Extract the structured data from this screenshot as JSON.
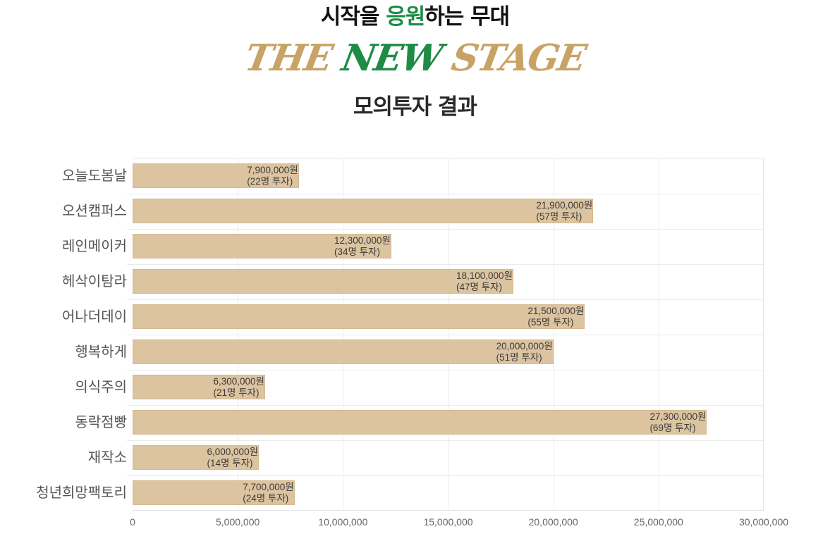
{
  "header": {
    "title_part1": "시작을 ",
    "title_accent": "응원",
    "title_part2": "하는 무대",
    "brand_part1": "THE ",
    "brand_part2": "NEW",
    "brand_part3": " STAGE",
    "subtitle": "모의투자 결과"
  },
  "colors": {
    "bar": "#dcc4a0",
    "accent_green": "#1e8c45",
    "brand_gold": "#c8a366"
  },
  "chart_data": {
    "type": "bar",
    "orientation": "horizontal",
    "title": "모의투자 결과",
    "xlabel": "",
    "ylabel": "",
    "xlim": [
      0,
      30000000
    ],
    "grid": true,
    "x_ticks": [
      "0",
      "5,000,000",
      "10,000,000",
      "15,000,000",
      "20,000,000",
      "25,000,000",
      "30,000,000"
    ],
    "categories": [
      "오늘도봄날",
      "오션캠퍼스",
      "레인메이커",
      "헤삭이탐라",
      "어나더데이",
      "행복하게",
      "의식주의",
      "동락점빵",
      "재작소",
      "청년희망팩토리"
    ],
    "values": [
      7900000,
      21900000,
      12300000,
      18100000,
      21500000,
      20000000,
      6300000,
      27300000,
      6000000,
      7700000
    ],
    "investors": [
      22,
      57,
      34,
      47,
      55,
      51,
      21,
      69,
      14,
      24
    ],
    "value_labels": [
      "7,900,000원",
      "21,900,000원",
      "12,300,000원",
      "18,100,000원",
      "21,500,000원",
      "20,000,000원",
      "6,300,000원",
      "27,300,000원",
      "6,000,000원",
      "7,700,000원"
    ],
    "investor_labels": [
      "(22명 투자)",
      "(57명 투자)",
      "(34명 투자)",
      "(47명 투자)",
      "(55명 투자)",
      "(51명 투자)",
      "(21명 투자)",
      "(69명 투자)",
      "(14명 투자)",
      "(24명 투자)"
    ]
  }
}
